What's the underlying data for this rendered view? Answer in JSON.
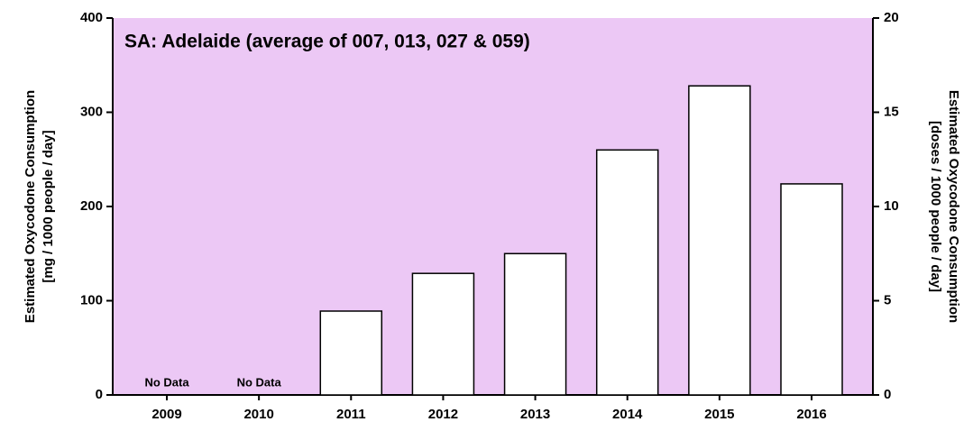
{
  "chart_data": {
    "type": "bar",
    "title": "SA: Adelaide (average of 007, 013, 027 & 059)",
    "ylabel": [
      "Estimated Oxycodone Consumption",
      "[mg / 1000 people / day]"
    ],
    "y2label": [
      "Estimated Oxycodone Consumption",
      "[doses / 1000 people / day]"
    ],
    "categories": [
      "2009",
      "2010",
      "2011",
      "2012",
      "2013",
      "2014",
      "2015",
      "2016"
    ],
    "values": [
      null,
      null,
      89,
      129,
      150,
      260,
      328,
      224
    ],
    "value_labels": [
      "No Data",
      "No Data",
      null,
      null,
      null,
      null,
      null,
      null
    ],
    "color": "#ffffff",
    "background": "#ecc8f5",
    "ylim": [
      0,
      400
    ],
    "yticks": [
      0,
      100,
      200,
      300,
      400
    ],
    "y2lim": [
      0,
      20
    ],
    "y2ticks": [
      0,
      5,
      10,
      15,
      20
    ]
  }
}
